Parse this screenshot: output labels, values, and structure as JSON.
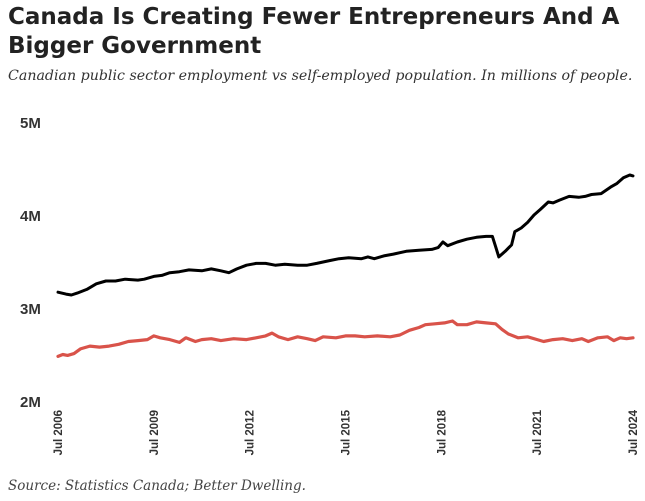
{
  "header": {
    "title": "Canada Is Creating Fewer Entrepreneurs And A Bigger Government",
    "subtitle": "Canadian public sector employment vs self-employed population. In millions of people.",
    "source": "Source: Statistics Canada; Better Dwelling."
  },
  "chart_data": {
    "type": "line",
    "title": "Canada Is Creating Fewer Entrepreneurs And A Bigger Government",
    "xlabel": "",
    "ylabel": "",
    "xlim": [
      2006.5,
      2024.5
    ],
    "ylim": [
      2.0,
      5.0
    ],
    "y_ticks": [
      {
        "value": 2,
        "label": "2M"
      },
      {
        "value": 3,
        "label": "3M"
      },
      {
        "value": 4,
        "label": "4M"
      },
      {
        "value": 5,
        "label": "5M"
      }
    ],
    "x_ticks": [
      {
        "value": 2006.5,
        "label": "Jul 2006"
      },
      {
        "value": 2009.5,
        "label": "Jul 2009"
      },
      {
        "value": 2012.5,
        "label": "Jul 2012"
      },
      {
        "value": 2015.5,
        "label": "Jul 2015"
      },
      {
        "value": 2018.5,
        "label": "Jul 2018"
      },
      {
        "value": 2021.5,
        "label": "Jul 2021"
      },
      {
        "value": 2024.5,
        "label": "Jul 2024"
      }
    ],
    "grid": false,
    "legend": "none",
    "series": [
      {
        "name": "Public sector employment",
        "color": "#000000",
        "points": [
          [
            2006.5,
            3.17
          ],
          [
            2006.75,
            3.15
          ],
          [
            2006.92,
            3.14
          ],
          [
            2007.1,
            3.16
          ],
          [
            2007.4,
            3.2
          ],
          [
            2007.7,
            3.26
          ],
          [
            2008.0,
            3.29
          ],
          [
            2008.3,
            3.29
          ],
          [
            2008.6,
            3.31
          ],
          [
            2009.0,
            3.3
          ],
          [
            2009.2,
            3.31
          ],
          [
            2009.5,
            3.34
          ],
          [
            2009.75,
            3.35
          ],
          [
            2010.0,
            3.38
          ],
          [
            2010.3,
            3.39
          ],
          [
            2010.6,
            3.41
          ],
          [
            2011.0,
            3.4
          ],
          [
            2011.3,
            3.42
          ],
          [
            2011.6,
            3.4
          ],
          [
            2011.85,
            3.38
          ],
          [
            2012.1,
            3.42
          ],
          [
            2012.4,
            3.46
          ],
          [
            2012.7,
            3.48
          ],
          [
            2013.0,
            3.48
          ],
          [
            2013.3,
            3.46
          ],
          [
            2013.6,
            3.47
          ],
          [
            2014.0,
            3.46
          ],
          [
            2014.3,
            3.46
          ],
          [
            2014.6,
            3.48
          ],
          [
            2015.0,
            3.51
          ],
          [
            2015.3,
            3.53
          ],
          [
            2015.6,
            3.54
          ],
          [
            2016.0,
            3.53
          ],
          [
            2016.2,
            3.55
          ],
          [
            2016.4,
            3.53
          ],
          [
            2016.7,
            3.56
          ],
          [
            2017.0,
            3.58
          ],
          [
            2017.4,
            3.61
          ],
          [
            2017.8,
            3.62
          ],
          [
            2018.2,
            3.63
          ],
          [
            2018.4,
            3.65
          ],
          [
            2018.55,
            3.71
          ],
          [
            2018.7,
            3.67
          ],
          [
            2019.0,
            3.71
          ],
          [
            2019.3,
            3.74
          ],
          [
            2019.6,
            3.76
          ],
          [
            2019.9,
            3.77
          ],
          [
            2020.1,
            3.77
          ],
          [
            2020.2,
            3.66
          ],
          [
            2020.3,
            3.55
          ],
          [
            2020.5,
            3.61
          ],
          [
            2020.7,
            3.68
          ],
          [
            2020.8,
            3.82
          ],
          [
            2021.0,
            3.86
          ],
          [
            2021.2,
            3.92
          ],
          [
            2021.4,
            4.0
          ],
          [
            2021.6,
            4.06
          ],
          [
            2021.85,
            4.14
          ],
          [
            2022.0,
            4.13
          ],
          [
            2022.2,
            4.16
          ],
          [
            2022.5,
            4.2
          ],
          [
            2022.8,
            4.19
          ],
          [
            2023.0,
            4.2
          ],
          [
            2023.2,
            4.22
          ],
          [
            2023.5,
            4.23
          ],
          [
            2023.8,
            4.3
          ],
          [
            2024.0,
            4.34
          ],
          [
            2024.2,
            4.4
          ],
          [
            2024.4,
            4.43
          ],
          [
            2024.5,
            4.42
          ]
        ]
      },
      {
        "name": "Self-employed",
        "color": "#d9534a",
        "points": [
          [
            2006.5,
            2.48
          ],
          [
            2006.65,
            2.5
          ],
          [
            2006.8,
            2.49
          ],
          [
            2007.0,
            2.51
          ],
          [
            2007.2,
            2.56
          ],
          [
            2007.5,
            2.59
          ],
          [
            2007.8,
            2.58
          ],
          [
            2008.1,
            2.59
          ],
          [
            2008.4,
            2.61
          ],
          [
            2008.7,
            2.64
          ],
          [
            2009.0,
            2.65
          ],
          [
            2009.3,
            2.66
          ],
          [
            2009.5,
            2.7
          ],
          [
            2009.7,
            2.68
          ],
          [
            2010.0,
            2.66
          ],
          [
            2010.3,
            2.63
          ],
          [
            2010.5,
            2.68
          ],
          [
            2010.8,
            2.64
          ],
          [
            2011.0,
            2.66
          ],
          [
            2011.3,
            2.67
          ],
          [
            2011.6,
            2.65
          ],
          [
            2012.0,
            2.67
          ],
          [
            2012.4,
            2.66
          ],
          [
            2012.7,
            2.68
          ],
          [
            2013.0,
            2.7
          ],
          [
            2013.2,
            2.73
          ],
          [
            2013.4,
            2.69
          ],
          [
            2013.7,
            2.66
          ],
          [
            2014.0,
            2.69
          ],
          [
            2014.3,
            2.67
          ],
          [
            2014.55,
            2.65
          ],
          [
            2014.8,
            2.69
          ],
          [
            2015.2,
            2.68
          ],
          [
            2015.5,
            2.7
          ],
          [
            2015.8,
            2.7
          ],
          [
            2016.1,
            2.69
          ],
          [
            2016.5,
            2.7
          ],
          [
            2016.9,
            2.69
          ],
          [
            2017.2,
            2.71
          ],
          [
            2017.5,
            2.76
          ],
          [
            2017.8,
            2.79
          ],
          [
            2018.0,
            2.82
          ],
          [
            2018.3,
            2.83
          ],
          [
            2018.6,
            2.84
          ],
          [
            2018.85,
            2.86
          ],
          [
            2019.0,
            2.82
          ],
          [
            2019.3,
            2.82
          ],
          [
            2019.6,
            2.85
          ],
          [
            2019.9,
            2.84
          ],
          [
            2020.2,
            2.83
          ],
          [
            2020.4,
            2.77
          ],
          [
            2020.6,
            2.72
          ],
          [
            2020.9,
            2.68
          ],
          [
            2021.2,
            2.69
          ],
          [
            2021.5,
            2.66
          ],
          [
            2021.7,
            2.64
          ],
          [
            2022.0,
            2.66
          ],
          [
            2022.3,
            2.67
          ],
          [
            2022.6,
            2.65
          ],
          [
            2022.9,
            2.67
          ],
          [
            2023.1,
            2.64
          ],
          [
            2023.4,
            2.68
          ],
          [
            2023.7,
            2.69
          ],
          [
            2023.9,
            2.65
          ],
          [
            2024.1,
            2.68
          ],
          [
            2024.3,
            2.67
          ],
          [
            2024.5,
            2.68
          ]
        ]
      }
    ]
  }
}
